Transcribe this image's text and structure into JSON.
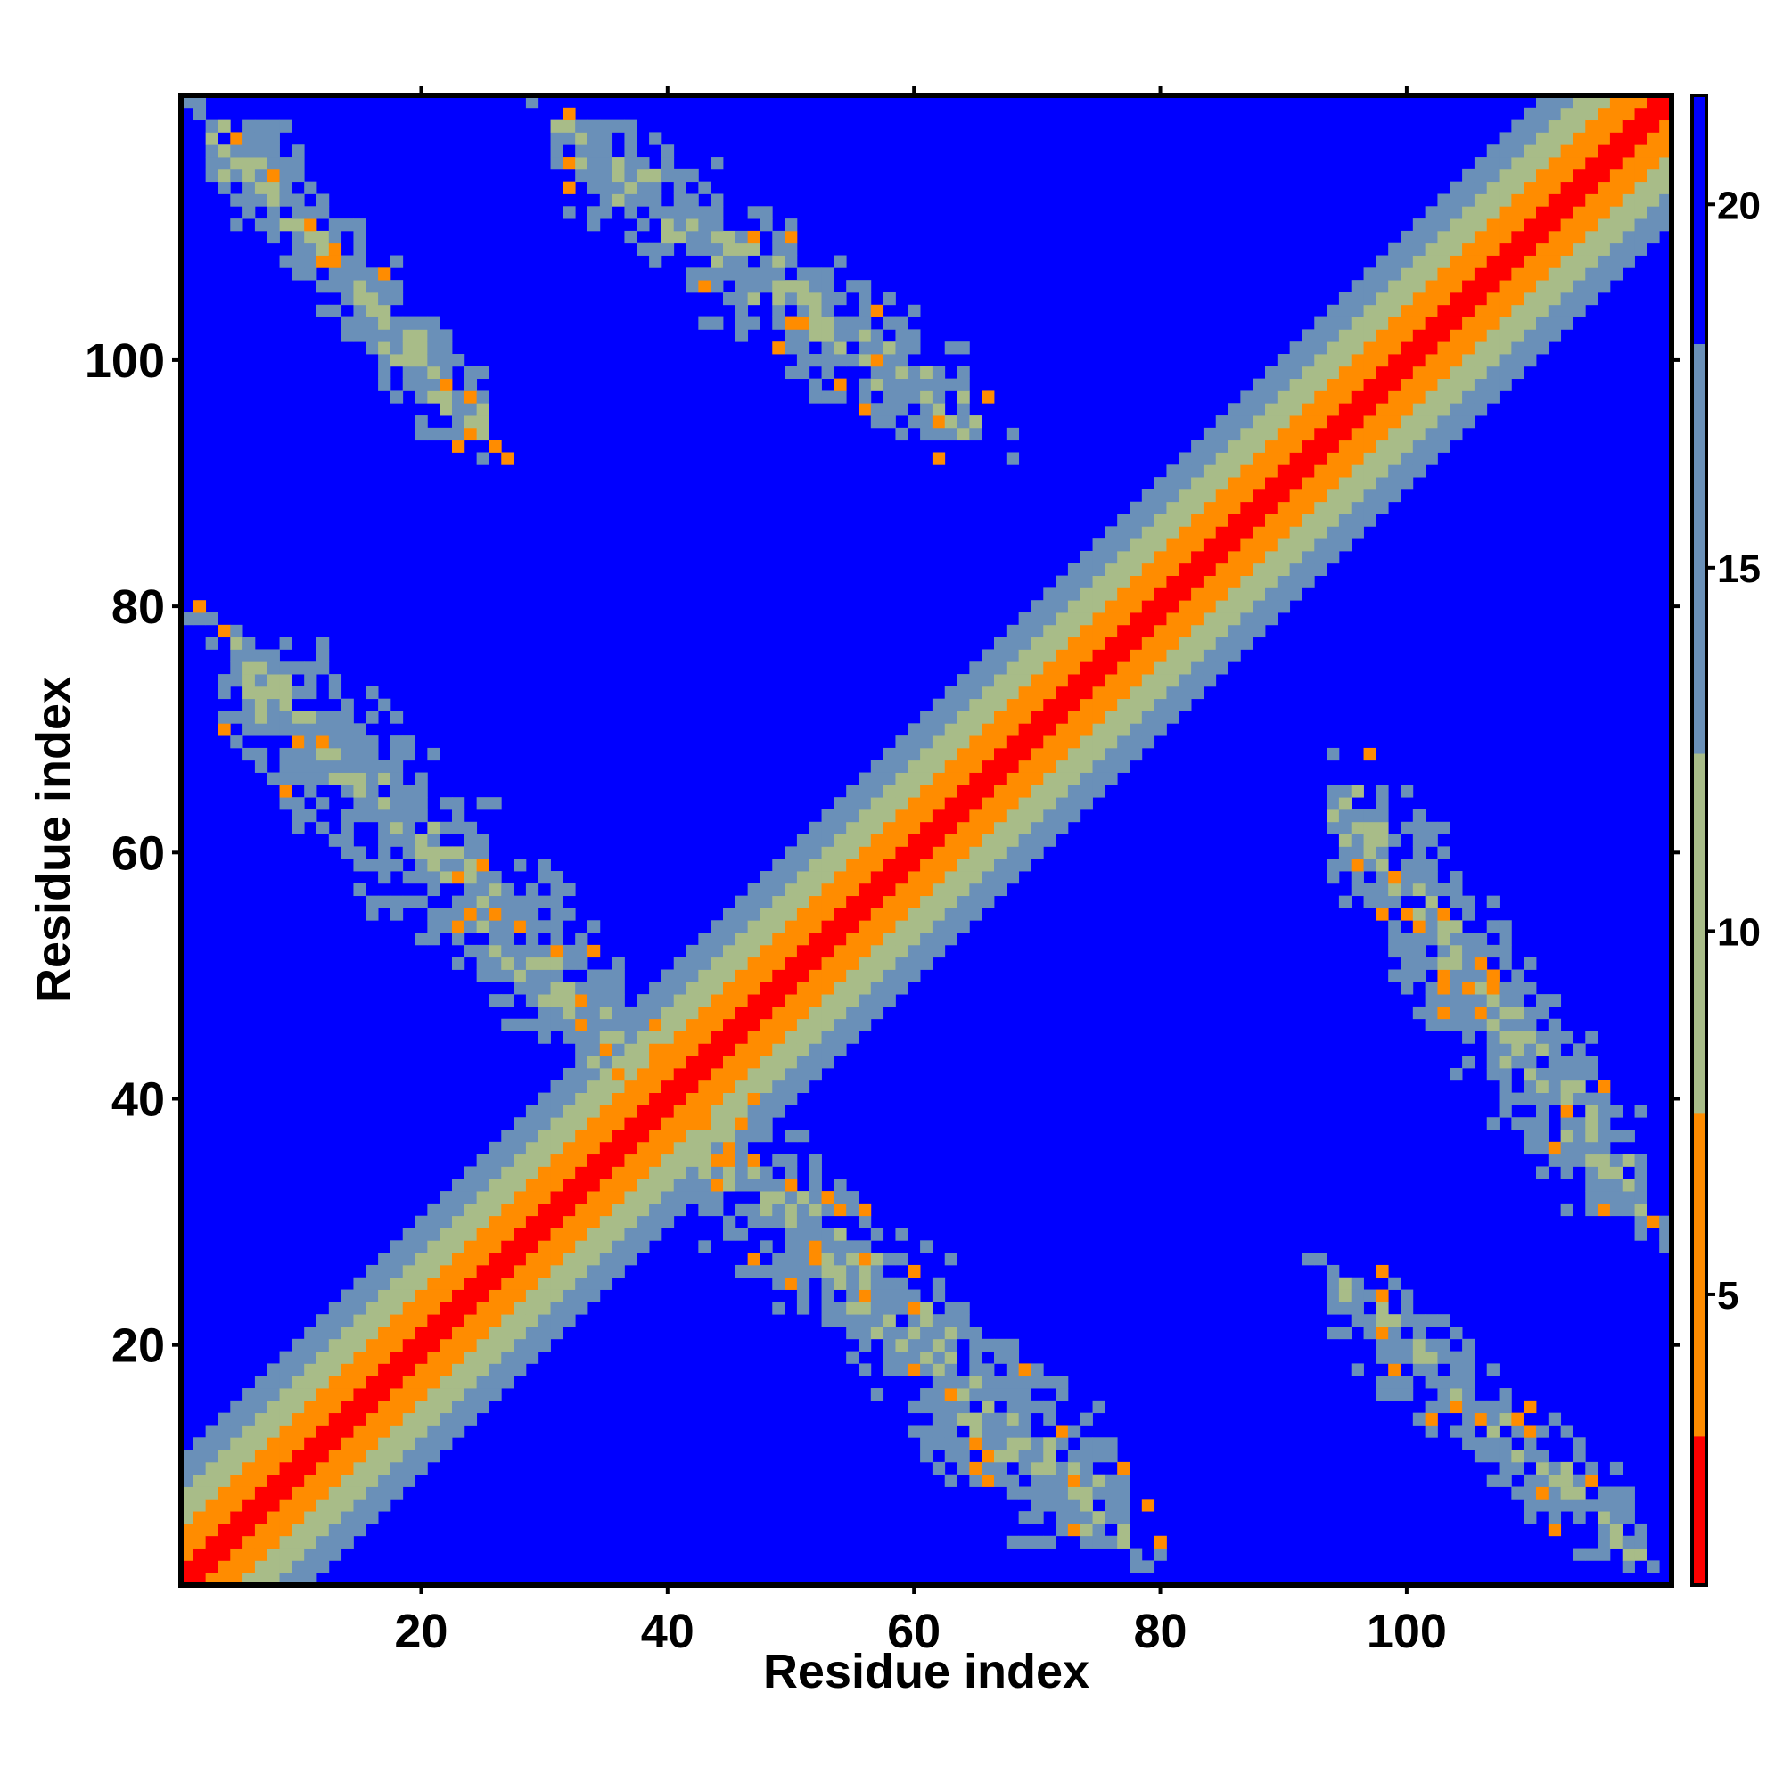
{
  "chart_data": {
    "type": "heatmap",
    "title": "",
    "xlabel": "Residue index",
    "ylabel": "Residue index",
    "xlim": [
      1,
      121
    ],
    "ylim": [
      1,
      121
    ],
    "x_ticks": [
      20,
      40,
      60,
      80,
      100
    ],
    "y_ticks": [
      20,
      40,
      60,
      80,
      100
    ],
    "n_residues": 121,
    "colorbar": {
      "ticks": [
        5,
        10,
        15,
        20
      ],
      "range": [
        1,
        21.5
      ],
      "colors": [
        "#ff0000",
        "#ff8c00",
        "#a8bc88",
        "#6a90b8",
        "#0000ff"
      ]
    },
    "features": [
      {
        "kind": "diagonal",
        "description": "main diagonal, near-zero distance along i = j"
      },
      {
        "kind": "helix-packing-blob",
        "x_range": [
          1,
          40
        ],
        "y_range": [
          40,
          80
        ]
      },
      {
        "kind": "helix-packing-blob",
        "x_range": [
          40,
          80
        ],
        "y_range": [
          1,
          40
        ]
      },
      {
        "kind": "helix-packing-blob",
        "x_range": [
          1,
          27
        ],
        "y_range": [
          92,
          121
        ]
      },
      {
        "kind": "helix-packing-blob",
        "x_range": [
          92,
          121
        ],
        "y_range": [
          1,
          27
        ]
      },
      {
        "kind": "helix-packing-blob",
        "x_range": [
          28,
          68
        ],
        "y_range": [
          92,
          121
        ]
      },
      {
        "kind": "helix-packing-blob",
        "x_range": [
          92,
          121
        ],
        "y_range": [
          28,
          68
        ]
      }
    ]
  }
}
